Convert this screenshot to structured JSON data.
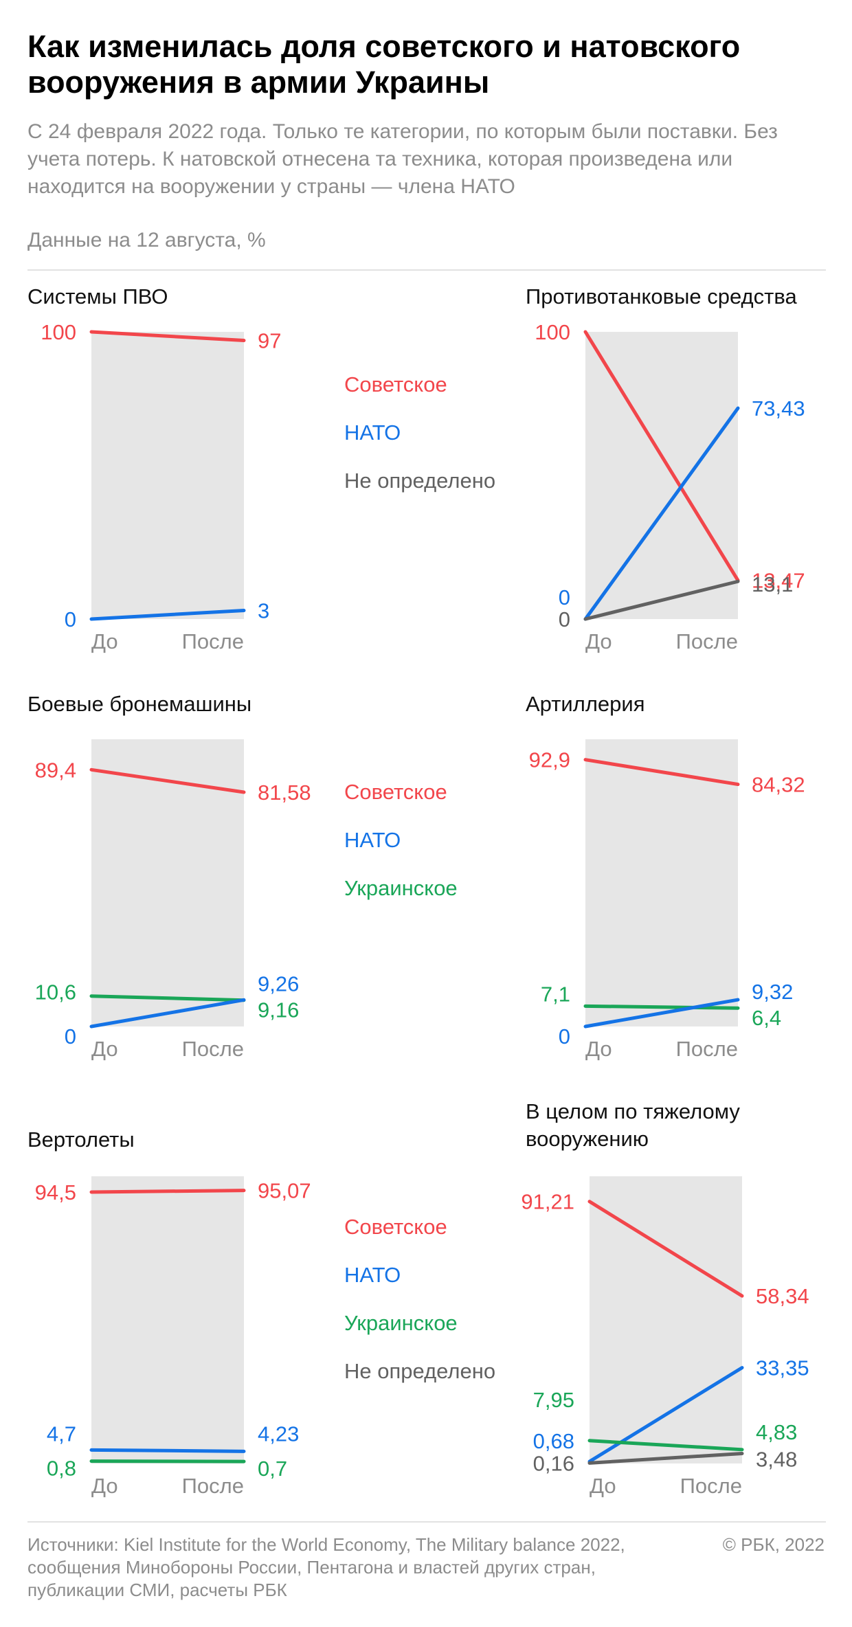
{
  "title": "Как изменилась доля советского и натовского вооружения в армии Украины",
  "subtitle": "С 24 февраля 2022 года. Только те категории, по которым были поставки. Без учета потерь. К натовской отнесена та техника, которая произведена или находится на вооружении у страны — члена НАТО",
  "data_note": "Данные на 12 августа, %",
  "colors": {
    "soviet": "#f2464b",
    "nato": "#1473e6",
    "ukrainian": "#1aa658",
    "undefined": "#616161",
    "panel": "#e6e6e6",
    "axis_label": "#8c8c8c"
  },
  "legends": [
    {
      "items": [
        {
          "key": "soviet",
          "label": "Советское"
        },
        {
          "key": "nato",
          "label": "НАТО"
        },
        {
          "key": "undefined",
          "label": "Не определено"
        }
      ]
    },
    {
      "items": [
        {
          "key": "soviet",
          "label": "Советское"
        },
        {
          "key": "nato",
          "label": "НАТО"
        },
        {
          "key": "ukrainian",
          "label": "Украинское"
        }
      ]
    },
    {
      "items": [
        {
          "key": "soviet",
          "label": "Советское"
        },
        {
          "key": "nato",
          "label": "НАТО"
        },
        {
          "key": "ukrainian",
          "label": "Украинское"
        },
        {
          "key": "undefined",
          "label": "Не определено"
        }
      ]
    }
  ],
  "chart_data": [
    {
      "type": "line",
      "title": "Системы ПВО",
      "categories": [
        "До",
        "После"
      ],
      "ylim": [
        0,
        100
      ],
      "series": [
        {
          "name": "Советское",
          "key": "soviet",
          "values": [
            100,
            97
          ],
          "labels": [
            "100",
            "97"
          ]
        },
        {
          "name": "НАТО",
          "key": "nato",
          "values": [
            0,
            3
          ],
          "labels": [
            "0",
            "3"
          ]
        }
      ]
    },
    {
      "type": "line",
      "title": "Противотанковые средства",
      "categories": [
        "До",
        "После"
      ],
      "ylim": [
        0,
        100
      ],
      "series": [
        {
          "name": "Советское",
          "key": "soviet",
          "values": [
            100,
            13.47
          ],
          "labels": [
            "100",
            "13,47"
          ]
        },
        {
          "name": "НАТО",
          "key": "nato",
          "values": [
            0,
            73.43
          ],
          "labels": [
            "0",
            "73,43"
          ]
        },
        {
          "name": "Не определено",
          "key": "undefined",
          "values": [
            0,
            13.1
          ],
          "labels": [
            "0",
            "13,1"
          ]
        }
      ]
    },
    {
      "type": "line",
      "title": "Боевые бронемашины",
      "categories": [
        "До",
        "После"
      ],
      "ylim": [
        0,
        100
      ],
      "series": [
        {
          "name": "Советское",
          "key": "soviet",
          "values": [
            89.4,
            81.58
          ],
          "labels": [
            "89,4",
            "81,58"
          ]
        },
        {
          "name": "Украинское",
          "key": "ukrainian",
          "values": [
            10.6,
            9.16
          ],
          "labels": [
            "10,6",
            "9,16"
          ]
        },
        {
          "name": "НАТО",
          "key": "nato",
          "values": [
            0,
            9.26
          ],
          "labels": [
            "0",
            "9,26"
          ]
        }
      ]
    },
    {
      "type": "line",
      "title": "Артиллерия",
      "categories": [
        "До",
        "После"
      ],
      "ylim": [
        0,
        100
      ],
      "series": [
        {
          "name": "Советское",
          "key": "soviet",
          "values": [
            92.9,
            84.32
          ],
          "labels": [
            "92,9",
            "84,32"
          ]
        },
        {
          "name": "Украинское",
          "key": "ukrainian",
          "values": [
            7.1,
            6.4
          ],
          "labels": [
            "7,1",
            "6,4"
          ]
        },
        {
          "name": "НАТО",
          "key": "nato",
          "values": [
            0,
            9.32
          ],
          "labels": [
            "0",
            "9,32"
          ]
        }
      ]
    },
    {
      "type": "line",
      "title": "Вертолеты",
      "categories": [
        "До",
        "После"
      ],
      "ylim": [
        0,
        100
      ],
      "series": [
        {
          "name": "Советское",
          "key": "soviet",
          "values": [
            94.5,
            95.07
          ],
          "labels": [
            "94,5",
            "95,07"
          ]
        },
        {
          "name": "НАТО",
          "key": "nato",
          "values": [
            4.7,
            4.23
          ],
          "labels": [
            "4,7",
            "4,23"
          ]
        },
        {
          "name": "Украинское",
          "key": "ukrainian",
          "values": [
            0.8,
            0.7
          ],
          "labels": [
            "0,8",
            "0,7"
          ]
        }
      ]
    },
    {
      "type": "line",
      "title": "В целом по тяжелому вооружению",
      "categories": [
        "До",
        "После"
      ],
      "ylim": [
        0,
        100
      ],
      "series": [
        {
          "name": "Советское",
          "key": "soviet",
          "values": [
            91.21,
            58.34
          ],
          "labels": [
            "91,21",
            "58,34"
          ]
        },
        {
          "name": "НАТО",
          "key": "nato",
          "values": [
            0.68,
            33.35
          ],
          "labels": [
            "0,68",
            "33,35"
          ]
        },
        {
          "name": "Украинское",
          "key": "ukrainian",
          "values": [
            7.95,
            4.83
          ],
          "labels": [
            "7,95",
            "4,83"
          ]
        },
        {
          "name": "Не определено",
          "key": "undefined",
          "values": [
            0.16,
            3.48
          ],
          "labels": [
            "0,16",
            "3,48"
          ]
        }
      ]
    }
  ],
  "footer": {
    "sources": "Источники: Kiel Institute for the World Economy, The Military balance 2022, сообщения Минобороны России, Пентагона и властей других стран, публикации СМИ, расчеты РБК",
    "copyright": "© РБК, 2022"
  }
}
